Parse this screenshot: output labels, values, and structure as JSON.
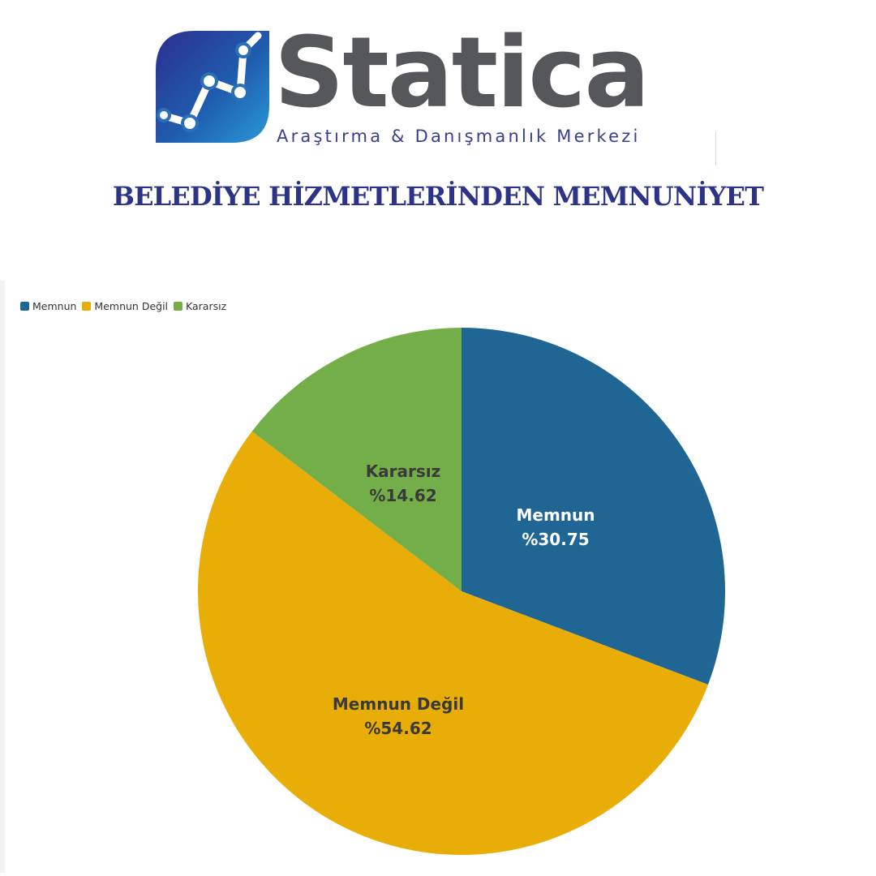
{
  "header": {
    "brand_name": "Statica",
    "brand_subtitle": "Araştırma & Danışmanlık Merkezi",
    "title": "BELEDİYE HİZMETLERİNDEN MEMNUNİYET"
  },
  "colors": {
    "memnun": "#1f6695",
    "memnun_degil": "#e9ad07",
    "kararsiz": "#73ae48",
    "title": "#2c3488",
    "brand_gray": "#55575b"
  },
  "chart_data": {
    "type": "pie",
    "legend_position": "top-left",
    "slices": [
      {
        "name": "Memnun",
        "value": 30.75,
        "label": "Memnun",
        "value_label": "%30.75",
        "color": "#1f6695",
        "label_color": "#ffffff"
      },
      {
        "name": "Memnun Değil",
        "value": 54.62,
        "label": "Memnun Değil",
        "value_label": "%54.62",
        "color": "#e9ad07",
        "label_color": "#3a3a3a"
      },
      {
        "name": "Kararsız",
        "value": 14.62,
        "label": "Kararsız",
        "value_label": "%14.62",
        "color": "#73ae48",
        "label_color": "#3a3a3a"
      }
    ]
  }
}
